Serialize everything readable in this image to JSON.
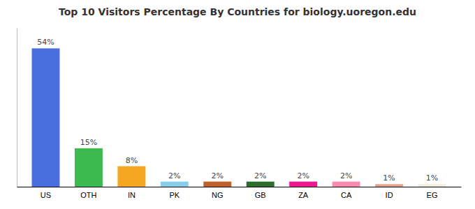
{
  "chart_data": {
    "type": "bar",
    "title": "Top 10 Visitors Percentage By Countries for biology.uoregon.edu",
    "categories": [
      "US",
      "OTH",
      "IN",
      "PK",
      "NG",
      "GB",
      "ZA",
      "CA",
      "ID",
      "EG"
    ],
    "values": [
      54,
      15,
      8,
      2,
      2,
      2,
      2,
      2,
      1,
      1
    ],
    "value_labels": [
      "54%",
      "15%",
      "8%",
      "2%",
      "2%",
      "2%",
      "2%",
      "2%",
      "1%",
      "1%"
    ],
    "colors": [
      "#4a6fdc",
      "#3dba4e",
      "#f5a623",
      "#87ceeb",
      "#c0622a",
      "#2d6e2d",
      "#f01890",
      "#f88db0",
      "#e8a090",
      "#f0eedc"
    ],
    "ylim": [
      0,
      62
    ],
    "data_labels": true,
    "tick_labels": "x",
    "grid": false
  }
}
